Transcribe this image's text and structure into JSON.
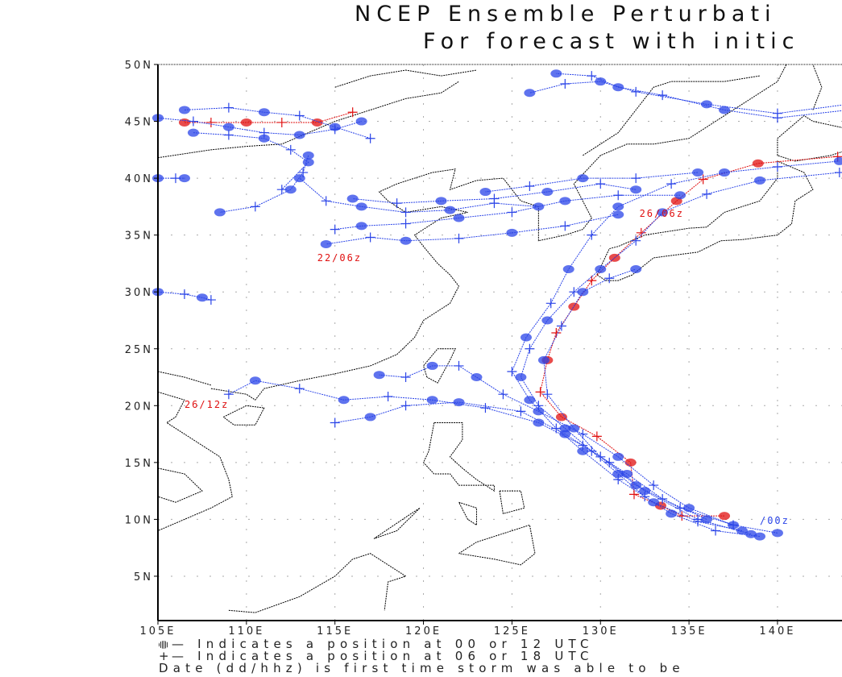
{
  "title": {
    "line1": "NCEP Ensemble Perturbati",
    "line2": "For forecast with initic"
  },
  "legend": {
    "line1": "— Indicates a position at 00 or 12 UTC",
    "line2": "— Indicates a position at 06 or 18 UTC",
    "line3": "Date (dd/hhz) is first time storm was able to be"
  },
  "colors": {
    "member": "#2a44e8",
    "mean": "#e01010",
    "coast": "#000000",
    "grid": "#aaaaaa"
  },
  "chart_data": {
    "type": "map-tracks",
    "lon_range": [
      105,
      143.6
    ],
    "lat_range": [
      1.1,
      50
    ],
    "x_ticks": [
      "105E",
      "110E",
      "115E",
      "120E",
      "125E",
      "130E",
      "135E",
      "140E"
    ],
    "x_tick_values": [
      105,
      110,
      115,
      120,
      125,
      130,
      135,
      140
    ],
    "y_ticks": [
      "50N",
      "45N",
      "40N",
      "35N",
      "30N",
      "25N",
      "20N",
      "15N",
      "10N",
      "5N"
    ],
    "y_tick_values": [
      50,
      45,
      40,
      35,
      30,
      25,
      20,
      15,
      10,
      5
    ],
    "grid": true,
    "track_labels": [
      {
        "text": "26/06z",
        "lon": 132.2,
        "lat": 36.6,
        "kind": "mean"
      },
      {
        "text": "22/06z",
        "lon": 114.0,
        "lat": 32.7,
        "kind": "mean"
      },
      {
        "text": "26/12z",
        "lon": 106.5,
        "lat": 19.8,
        "kind": "mean"
      },
      {
        "text": "/00z",
        "lon": 139.0,
        "lat": 9.6,
        "kind": "member"
      }
    ],
    "tracks": [
      {
        "kind": "mean",
        "points": [
          [
            137,
            10.3
          ],
          [
            134.6,
            10.3
          ],
          [
            133.4,
            11.2
          ],
          [
            131.9,
            12.2
          ],
          [
            131.7,
            15
          ],
          [
            129.8,
            17.3
          ],
          [
            127.8,
            19
          ],
          [
            126.6,
            21.2
          ],
          [
            127,
            24
          ],
          [
            127.5,
            26.4
          ],
          [
            128.5,
            28.7
          ],
          [
            129.5,
            31
          ],
          [
            130.8,
            33
          ],
          [
            132.3,
            35.2
          ],
          [
            134.3,
            38
          ],
          [
            135.8,
            39.9
          ],
          [
            138.9,
            41.3
          ],
          [
            143.4,
            41.9
          ]
        ]
      },
      {
        "kind": "member",
        "points": [
          [
            139,
            8.5
          ],
          [
            136.5,
            9
          ],
          [
            134,
            10.5
          ],
          [
            132.5,
            12
          ],
          [
            131,
            14
          ],
          [
            129.5,
            16
          ],
          [
            128,
            18
          ],
          [
            126.5,
            20
          ],
          [
            125.5,
            22.5
          ],
          [
            126,
            25
          ],
          [
            127,
            27.5
          ],
          [
            128.5,
            30
          ],
          [
            130,
            32
          ],
          [
            132,
            34.5
          ],
          [
            133.5,
            37
          ],
          [
            136,
            38.6
          ],
          [
            139,
            39.8
          ],
          [
            143.5,
            40.5
          ]
        ]
      },
      {
        "kind": "member",
        "points": [
          [
            138,
            9
          ],
          [
            135.5,
            9.8
          ],
          [
            133,
            11.5
          ],
          [
            131,
            13.5
          ],
          [
            129,
            16
          ],
          [
            127.5,
            18
          ],
          [
            126,
            20.5
          ],
          [
            125,
            23
          ],
          [
            125.8,
            26
          ],
          [
            127.2,
            29
          ],
          [
            128.2,
            32
          ],
          [
            129.5,
            35
          ],
          [
            131,
            37.5
          ],
          [
            134,
            39.5
          ],
          [
            137,
            40.5
          ],
          [
            140,
            41
          ],
          [
            143.5,
            41.5
          ]
        ]
      },
      {
        "kind": "member",
        "points": [
          [
            140,
            8.8
          ],
          [
            137.5,
            9.5
          ],
          [
            135,
            11
          ],
          [
            133,
            13
          ],
          [
            131,
            15.5
          ],
          [
            129,
            17.5
          ],
          [
            126.5,
            19.5
          ],
          [
            124.5,
            21
          ],
          [
            123,
            22.5
          ],
          [
            122,
            23.5
          ],
          [
            120.5,
            23.5
          ],
          [
            119,
            22.5
          ],
          [
            117.5,
            22.7
          ]
        ]
      },
      {
        "kind": "member",
        "points": [
          [
            136,
            10
          ],
          [
            133.5,
            11.8
          ],
          [
            131.5,
            14
          ],
          [
            129,
            16.5
          ],
          [
            126.5,
            18.5
          ],
          [
            123.5,
            19.8
          ],
          [
            120.5,
            20.5
          ],
          [
            118,
            20.8
          ],
          [
            115.5,
            20.5
          ],
          [
            113,
            21.5
          ],
          [
            110.5,
            22.2
          ],
          [
            109,
            21
          ]
        ]
      },
      {
        "kind": "member",
        "points": [
          [
            138.5,
            8.7
          ],
          [
            135.5,
            10
          ],
          [
            132.5,
            12.5
          ],
          [
            130.5,
            15
          ],
          [
            128,
            17.5
          ],
          [
            125.5,
            19.5
          ],
          [
            122,
            20.3
          ],
          [
            119,
            20
          ],
          [
            117,
            19
          ],
          [
            115,
            18.5
          ]
        ]
      },
      {
        "kind": "member",
        "points": [
          [
            137.5,
            9.5
          ],
          [
            134.5,
            11
          ],
          [
            132,
            13
          ],
          [
            130,
            15.5
          ],
          [
            128.5,
            18
          ],
          [
            127,
            21
          ],
          [
            126.8,
            24
          ],
          [
            127.8,
            27
          ],
          [
            129,
            30
          ],
          [
            130.5,
            31.2
          ],
          [
            132,
            32
          ]
        ]
      },
      {
        "kind": "member",
        "points": [
          [
            126.5,
            37.5
          ],
          [
            124,
            37.8
          ],
          [
            121.5,
            37.2
          ],
          [
            119,
            37
          ],
          [
            116.5,
            37.5
          ],
          [
            114.5,
            38
          ],
          [
            113,
            40
          ]
        ]
      },
      {
        "kind": "member",
        "points": [
          [
            134.5,
            38.5
          ],
          [
            131,
            38.5
          ],
          [
            128,
            38
          ],
          [
            125,
            37
          ],
          [
            122,
            36.5
          ],
          [
            119,
            36
          ],
          [
            116.5,
            35.8
          ],
          [
            115,
            35.5
          ]
        ]
      },
      {
        "kind": "member",
        "points": [
          [
            131,
            36.8
          ],
          [
            128,
            35.8
          ],
          [
            125,
            35.2
          ],
          [
            122,
            34.7
          ],
          [
            119,
            34.5
          ],
          [
            117,
            34.8
          ],
          [
            114.5,
            34.2
          ]
        ]
      },
      {
        "kind": "member",
        "points": [
          [
            132,
            39
          ],
          [
            130,
            39.5
          ],
          [
            127,
            38.8
          ],
          [
            124,
            38.2
          ],
          [
            121,
            38
          ],
          [
            118.5,
            37.8
          ],
          [
            116,
            38.2
          ]
        ]
      },
      {
        "kind": "member",
        "points": [
          [
            135.5,
            40.5
          ],
          [
            132,
            40
          ],
          [
            129,
            40
          ],
          [
            126,
            39.3
          ],
          [
            123.5,
            38.8
          ]
        ]
      },
      {
        "kind": "member",
        "points": [
          [
            144,
            46.5
          ],
          [
            140,
            45.7
          ],
          [
            136,
            46.5
          ],
          [
            132,
            47.6
          ],
          [
            130,
            48.5
          ],
          [
            128,
            48.3
          ],
          [
            126,
            47.5
          ]
        ]
      },
      {
        "kind": "member",
        "points": [
          [
            144,
            46
          ],
          [
            140,
            45.3
          ],
          [
            137,
            46
          ],
          [
            133.5,
            47.3
          ],
          [
            131,
            48
          ],
          [
            129.5,
            49
          ],
          [
            127.5,
            49.2
          ]
        ]
      },
      {
        "kind": "mean",
        "points": [
          [
            106.5,
            44.9
          ],
          [
            108,
            44.9
          ],
          [
            110,
            44.9
          ],
          [
            112,
            44.9
          ],
          [
            114,
            44.9
          ],
          [
            116,
            45.8
          ]
        ]
      },
      {
        "kind": "member",
        "points": [
          [
            105,
            45.3
          ],
          [
            107,
            45
          ],
          [
            109,
            44.5
          ],
          [
            111,
            44
          ],
          [
            113,
            43.8
          ],
          [
            115,
            44.3
          ],
          [
            116.5,
            45
          ]
        ]
      },
      {
        "kind": "member",
        "points": [
          [
            107,
            44
          ],
          [
            109,
            43.8
          ],
          [
            111,
            43.5
          ],
          [
            112.5,
            42.5
          ],
          [
            113.5,
            41.4
          ],
          [
            112,
            39
          ]
        ]
      },
      {
        "kind": "member",
        "points": [
          [
            106.5,
            46
          ],
          [
            109,
            46.2
          ],
          [
            111,
            45.8
          ],
          [
            113,
            45.5
          ],
          [
            115,
            44.5
          ],
          [
            117,
            43.5
          ]
        ]
      },
      {
        "kind": "member",
        "points": [
          [
            113.5,
            42
          ],
          [
            113.2,
            40.5
          ],
          [
            112.5,
            39
          ],
          [
            110.5,
            37.5
          ],
          [
            108.5,
            37
          ]
        ]
      },
      {
        "kind": "member",
        "points": [
          [
            105,
            30
          ],
          [
            106.5,
            29.8
          ],
          [
            107.5,
            29.5
          ],
          [
            108,
            29.3
          ]
        ]
      },
      {
        "kind": "member",
        "points": [
          [
            105,
            40
          ],
          [
            106,
            40
          ],
          [
            106.5,
            40
          ]
        ]
      }
    ]
  }
}
